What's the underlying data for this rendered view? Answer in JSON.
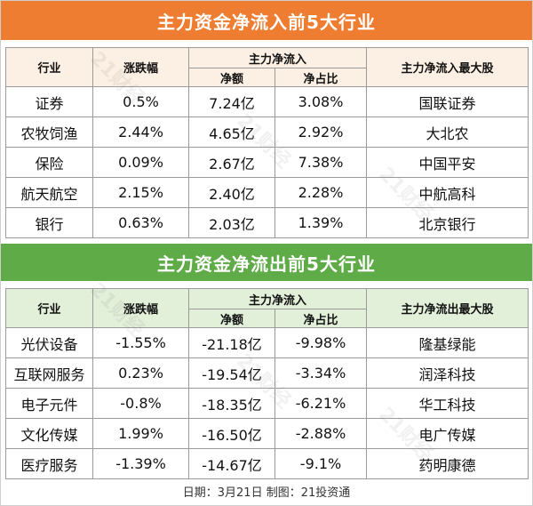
{
  "inflow": {
    "title": "主力资金净流入前5大行业",
    "headers": {
      "industry": "行业",
      "change": "涨跌幅",
      "group": "主力净流入",
      "net": "净额",
      "ratio": "净占比",
      "top_stock": "主力净流入最大股"
    },
    "rows": [
      {
        "industry": "证券",
        "change": "0.5%",
        "net": "7.24亿",
        "ratio": "3.08%",
        "top_stock": "国联证券"
      },
      {
        "industry": "农牧饲渔",
        "change": "2.44%",
        "net": "4.65亿",
        "ratio": "2.92%",
        "top_stock": "大北农"
      },
      {
        "industry": "保险",
        "change": "0.09%",
        "net": "2.67亿",
        "ratio": "7.38%",
        "top_stock": "中国平安"
      },
      {
        "industry": "航天航空",
        "change": "2.15%",
        "net": "2.40亿",
        "ratio": "2.28%",
        "top_stock": "中航高科"
      },
      {
        "industry": "银行",
        "change": "0.63%",
        "net": "2.03亿",
        "ratio": "1.39%",
        "top_stock": "北京银行"
      }
    ]
  },
  "outflow": {
    "title": "主力资金净流出前5大行业",
    "headers": {
      "industry": "行业",
      "change": "涨跌幅",
      "group": "主力净流入",
      "net": "净额",
      "ratio": "净占比",
      "top_stock": "主力净流出最大股"
    },
    "rows": [
      {
        "industry": "光伏设备",
        "change": "-1.55%",
        "net": "-21.18亿",
        "ratio": "-9.98%",
        "top_stock": "隆基绿能"
      },
      {
        "industry": "互联网服务",
        "change": "0.23%",
        "net": "-19.54亿",
        "ratio": "-3.34%",
        "top_stock": "润泽科技"
      },
      {
        "industry": "电子元件",
        "change": "-0.8%",
        "net": "-18.35亿",
        "ratio": "-6.21%",
        "top_stock": "华工科技"
      },
      {
        "industry": "文化传媒",
        "change": "1.99%",
        "net": "-16.50亿",
        "ratio": "-2.88%",
        "top_stock": "电广传媒"
      },
      {
        "industry": "医疗服务",
        "change": "-1.39%",
        "net": "-14.67亿",
        "ratio": "-9.1%",
        "top_stock": "药明康德"
      }
    ]
  },
  "footer": "日期：3月21日 制图：21投资通",
  "watermark": "21财经",
  "colors": {
    "inflow_banner": "#ee7d31",
    "outflow_banner": "#5fab47"
  }
}
